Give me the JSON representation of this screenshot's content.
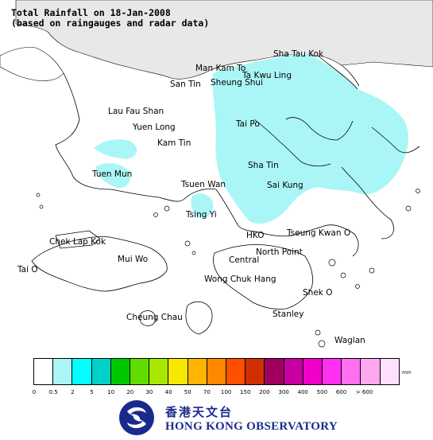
{
  "title_line1": "Total Rainfall on 18-Jan-2008",
  "title_line2": "(based on raingauges and radar data)",
  "places": [
    {
      "id": "sha-tau-kok",
      "name": "Sha Tau Kok"
    },
    {
      "id": "man-kam-to",
      "name": "Man Kam To"
    },
    {
      "id": "ta-kwu-ling",
      "name": "Ta Kwu Ling"
    },
    {
      "id": "san-tin",
      "name": "San Tin"
    },
    {
      "id": "sheung-shui",
      "name": "Sheung Shui"
    },
    {
      "id": "lau-fau-shan",
      "name": "Lau Fau Shan"
    },
    {
      "id": "yuen-long",
      "name": "Yuen Long"
    },
    {
      "id": "tai-po",
      "name": "Tai Po"
    },
    {
      "id": "kam-tin",
      "name": "Kam Tin"
    },
    {
      "id": "tuen-mun",
      "name": "Tuen Mun"
    },
    {
      "id": "sha-tin",
      "name": "Sha Tin"
    },
    {
      "id": "tsuen-wan",
      "name": "Tsuen Wan"
    },
    {
      "id": "sai-kung",
      "name": "Sai Kung"
    },
    {
      "id": "tsing-yi",
      "name": "Tsing Yi"
    },
    {
      "id": "hko",
      "name": "HKO"
    },
    {
      "id": "tseung-kwan-o",
      "name": "Tseung Kwan O"
    },
    {
      "id": "chek-lap-kok",
      "name": "Chek Lap Kok"
    },
    {
      "id": "north-point",
      "name": "North Point"
    },
    {
      "id": "mui-wo",
      "name": "Mui Wo"
    },
    {
      "id": "central",
      "name": "Central"
    },
    {
      "id": "tai-o",
      "name": "Tai O"
    },
    {
      "id": "wong-chuk-hang",
      "name": "Wong Chuk Hang"
    },
    {
      "id": "shek-o",
      "name": "Shek O"
    },
    {
      "id": "stanley",
      "name": "Stanley"
    },
    {
      "id": "cheung-chau",
      "name": "Cheung Chau"
    },
    {
      "id": "waglan",
      "name": "Waglan"
    }
  ],
  "legend": {
    "unit": "mm",
    "colors": [
      "#ffffff",
      "#aaf6f6",
      "#00ffff",
      "#00d0c8",
      "#00c800",
      "#60dc00",
      "#a8e800",
      "#f8e800",
      "#ffb400",
      "#ff8800",
      "#ff5000",
      "#d03000",
      "#a00060",
      "#c800a0",
      "#f000c8",
      "#ff30f0",
      "#ff70f0",
      "#ffa8f0",
      "#ffe0ff"
    ],
    "ticks": [
      "0",
      "0.5",
      "2",
      "5",
      "10",
      "20",
      "30",
      "40",
      "50",
      "70",
      "100",
      "150",
      "200",
      "300",
      "400",
      "500",
      "600",
      "> 600"
    ]
  },
  "rain_color": "#aaf6f6",
  "land_color": "#e8e8e8",
  "branding": {
    "chinese": "香港天文台",
    "english": "HONG KONG OBSERVATORY"
  }
}
